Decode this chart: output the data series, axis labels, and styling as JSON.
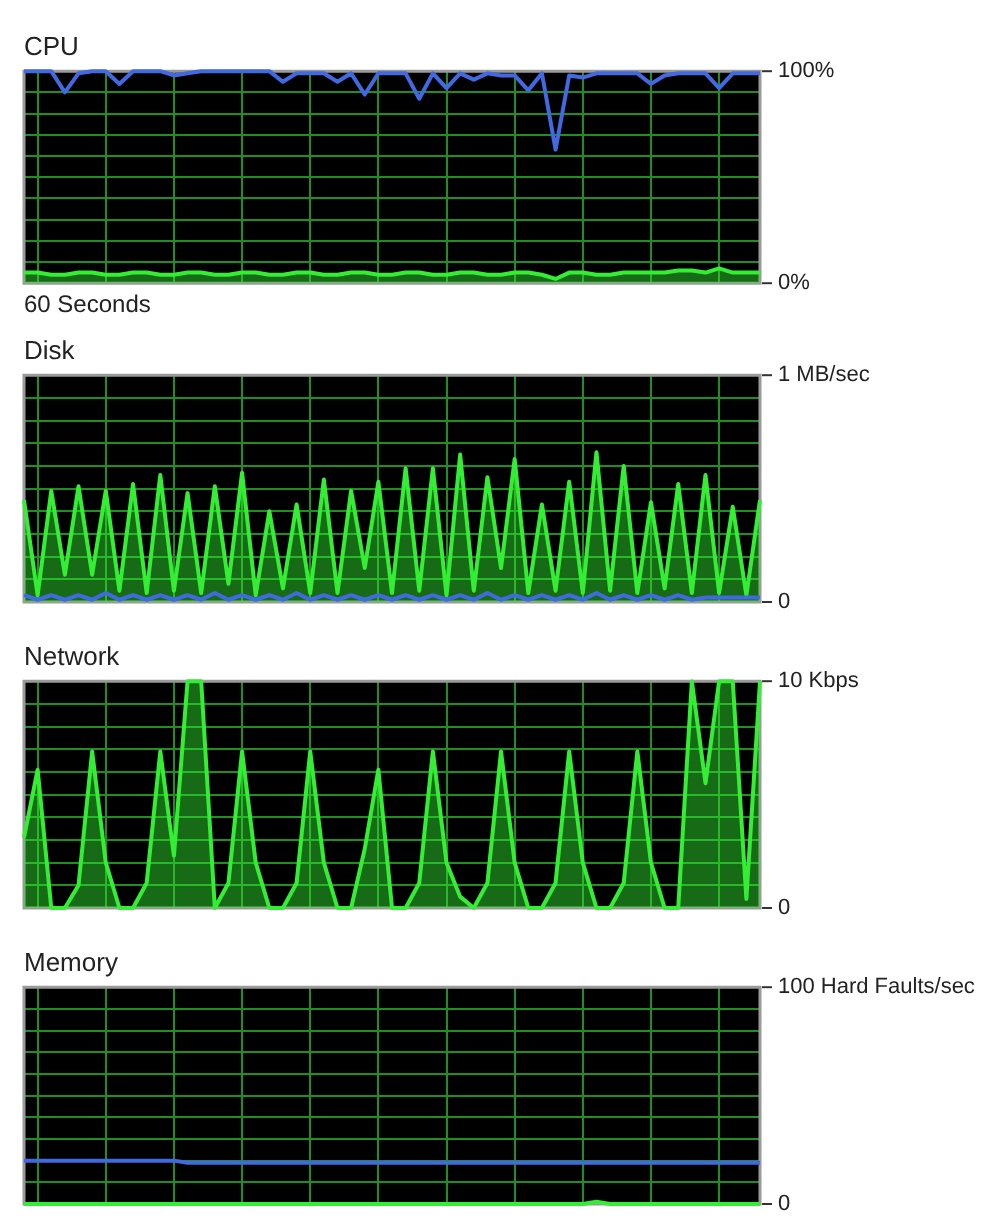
{
  "chart_data": [
    {
      "type": "line",
      "title": "CPU",
      "xlabel": "60 Seconds",
      "categories": [
        null,
        null,
        null,
        null,
        null,
        null,
        null,
        null,
        null,
        null,
        null,
        null,
        null,
        null,
        null,
        null,
        null,
        null,
        null,
        null,
        null,
        null,
        null,
        null,
        null,
        null,
        null,
        null,
        null,
        null,
        null,
        null,
        null,
        null,
        null,
        null,
        null,
        null,
        null,
        null,
        null,
        null,
        null,
        null,
        null,
        null,
        null,
        null,
        null,
        null,
        null,
        null,
        null,
        null,
        null
      ],
      "ylim": [
        0,
        100
      ],
      "yticks": [
        {
          "value": 0,
          "label": "0%"
        },
        {
          "value": 10,
          "label": null
        },
        {
          "value": 20,
          "label": null
        },
        {
          "value": 30,
          "label": null
        },
        {
          "value": 40,
          "label": null
        },
        {
          "value": 50,
          "label": null
        },
        {
          "value": 60,
          "label": null
        },
        {
          "value": 70,
          "label": null
        },
        {
          "value": 80,
          "label": null
        },
        {
          "value": 90,
          "label": null
        },
        {
          "value": 100,
          "label": "100%"
        }
      ],
      "grid": true,
      "legend": false,
      "marker": "none",
      "tick_labels": "y",
      "series": [
        {
          "type": "area",
          "color": "#33ee33",
          "values": [
            5,
            5,
            4,
            4,
            5,
            5,
            4,
            4,
            5,
            5,
            4,
            4,
            5,
            5,
            4,
            4,
            5,
            5,
            4,
            4,
            5,
            5,
            4,
            4,
            5,
            5,
            4,
            4,
            5,
            5,
            4,
            4,
            5,
            5,
            4,
            4,
            5,
            5,
            4,
            2,
            5,
            5,
            4,
            4,
            5,
            5,
            5,
            5,
            6,
            6,
            5,
            7,
            5,
            5,
            5
          ]
        },
        {
          "color": "#4169e1",
          "values": [
            100,
            100,
            100,
            90,
            99,
            100,
            100,
            94,
            100,
            100,
            100,
            98,
            99,
            100,
            100,
            100,
            100,
            100,
            100,
            95,
            99,
            99,
            99,
            95,
            99,
            89,
            99,
            99,
            99,
            87,
            99,
            92,
            99,
            96,
            99,
            98,
            98,
            91,
            99,
            63,
            98,
            97,
            99,
            99,
            99,
            99,
            94,
            98,
            99,
            99,
            99,
            92,
            99,
            99,
            99
          ]
        }
      ]
    },
    {
      "type": "line",
      "title": "Disk",
      "categories": [
        null,
        null,
        null,
        null,
        null,
        null,
        null,
        null,
        null,
        null,
        null,
        null,
        null,
        null,
        null,
        null,
        null,
        null,
        null,
        null,
        null,
        null,
        null,
        null,
        null,
        null,
        null,
        null,
        null,
        null,
        null,
        null,
        null,
        null,
        null,
        null,
        null,
        null,
        null,
        null,
        null,
        null,
        null,
        null,
        null,
        null,
        null,
        null,
        null,
        null,
        null,
        null,
        null,
        null,
        null
      ],
      "ylim": [
        0,
        1
      ],
      "yticks": [
        {
          "value": 0,
          "label": "0"
        },
        {
          "value": 0.1,
          "label": null
        },
        {
          "value": 0.2,
          "label": null
        },
        {
          "value": 0.3,
          "label": null
        },
        {
          "value": 0.4,
          "label": null
        },
        {
          "value": 0.5,
          "label": null
        },
        {
          "value": 0.6,
          "label": null
        },
        {
          "value": 0.7,
          "label": null
        },
        {
          "value": 0.8,
          "label": null
        },
        {
          "value": 0.9,
          "label": null
        },
        {
          "value": 1,
          "label": "1 MB/sec"
        }
      ],
      "grid": true,
      "legend": false,
      "marker": "none",
      "tick_labels": "y",
      "series": [
        {
          "type": "area",
          "color": "#33ee33",
          "values": [
            0.45,
            0.03,
            0.49,
            0.12,
            0.51,
            0.12,
            0.49,
            0.05,
            0.52,
            0.04,
            0.56,
            0.05,
            0.48,
            0.04,
            0.51,
            0.08,
            0.57,
            0.03,
            0.4,
            0.06,
            0.43,
            0.04,
            0.54,
            0.04,
            0.49,
            0.15,
            0.53,
            0.04,
            0.59,
            0.05,
            0.59,
            0.03,
            0.65,
            0.05,
            0.55,
            0.15,
            0.63,
            0.04,
            0.43,
            0.05,
            0.53,
            0.04,
            0.66,
            0.05,
            0.6,
            0.04,
            0.44,
            0.06,
            0.52,
            0.04,
            0.56,
            0.04,
            0.42,
            0.03,
            0.45
          ]
        },
        {
          "color": "#4169e1",
          "values": [
            0.03,
            0.01,
            0.03,
            0.01,
            0.03,
            0.01,
            0.04,
            0.01,
            0.03,
            0.01,
            0.03,
            0.01,
            0.03,
            0.01,
            0.04,
            0.01,
            0.03,
            0.01,
            0.03,
            0.01,
            0.04,
            0.01,
            0.03,
            0.01,
            0.03,
            0.01,
            0.03,
            0.01,
            0.03,
            0.01,
            0.03,
            0.01,
            0.03,
            0.01,
            0.04,
            0.01,
            0.03,
            0.01,
            0.03,
            0.01,
            0.03,
            0.01,
            0.04,
            0.01,
            0.03,
            0.01,
            0.03,
            0.01,
            0.03,
            0.01,
            0.02,
            0.02,
            0.02,
            0.02,
            0.02
          ]
        }
      ]
    },
    {
      "type": "area",
      "title": "Network",
      "categories": [
        null,
        null,
        null,
        null,
        null,
        null,
        null,
        null,
        null,
        null,
        null,
        null,
        null,
        null,
        null,
        null,
        null,
        null,
        null,
        null,
        null,
        null,
        null,
        null,
        null,
        null,
        null,
        null,
        null,
        null,
        null,
        null,
        null,
        null,
        null,
        null,
        null,
        null,
        null,
        null,
        null,
        null,
        null,
        null,
        null,
        null,
        null,
        null,
        null,
        null,
        null,
        null,
        null,
        null,
        null
      ],
      "ylim": [
        0,
        10
      ],
      "yticks": [
        {
          "value": 0,
          "label": "0"
        },
        {
          "value": 1,
          "label": null
        },
        {
          "value": 2,
          "label": null
        },
        {
          "value": 3,
          "label": null
        },
        {
          "value": 4,
          "label": null
        },
        {
          "value": 5,
          "label": null
        },
        {
          "value": 6,
          "label": null
        },
        {
          "value": 7,
          "label": null
        },
        {
          "value": 8,
          "label": null
        },
        {
          "value": 9,
          "label": null
        },
        {
          "value": 10,
          "label": "10 Kbps"
        }
      ],
      "grid": true,
      "legend": false,
      "marker": "none",
      "tick_labels": "y",
      "series": [
        {
          "color": "#33ee33",
          "values": [
            3.1,
            6.1,
            0,
            0,
            1.0,
            6.9,
            2.0,
            0,
            0,
            1.1,
            6.9,
            2.3,
            10,
            10,
            0,
            1.1,
            6.9,
            2.0,
            0,
            0,
            1.1,
            6.9,
            2.0,
            0,
            0,
            2.6,
            6.1,
            0,
            0,
            1.1,
            6.9,
            2.0,
            0.5,
            0,
            1.1,
            6.9,
            2.0,
            0,
            0,
            1.1,
            6.9,
            2.0,
            0,
            0,
            1.1,
            6.9,
            2.0,
            0,
            0,
            10,
            5.5,
            10,
            10,
            0.4,
            10
          ]
        }
      ]
    },
    {
      "type": "line",
      "title": "Memory",
      "categories": [
        null,
        null,
        null,
        null,
        null,
        null,
        null,
        null,
        null,
        null,
        null,
        null,
        null,
        null,
        null,
        null,
        null,
        null,
        null,
        null,
        null,
        null,
        null,
        null,
        null,
        null,
        null,
        null,
        null,
        null,
        null,
        null,
        null,
        null,
        null,
        null,
        null,
        null,
        null,
        null,
        null,
        null,
        null,
        null,
        null,
        null,
        null,
        null,
        null,
        null,
        null,
        null,
        null,
        null,
        null
      ],
      "ylim": [
        0,
        100
      ],
      "yticks": [
        {
          "value": 0,
          "label": "0"
        },
        {
          "value": 10,
          "label": null
        },
        {
          "value": 20,
          "label": null
        },
        {
          "value": 30,
          "label": null
        },
        {
          "value": 40,
          "label": null
        },
        {
          "value": 50,
          "label": null
        },
        {
          "value": 60,
          "label": null
        },
        {
          "value": 70,
          "label": null
        },
        {
          "value": 80,
          "label": null
        },
        {
          "value": 90,
          "label": null
        },
        {
          "value": 100,
          "label": "100 Hard Faults/sec"
        }
      ],
      "grid": true,
      "legend": false,
      "marker": "none",
      "tick_labels": "y",
      "series": [
        {
          "type": "area",
          "color": "#33ee33",
          "values": [
            0,
            0,
            0,
            0,
            0,
            0,
            0,
            0,
            0,
            0,
            0,
            0,
            0,
            0,
            0,
            0,
            0,
            0,
            0,
            0,
            0,
            0,
            0,
            0,
            0,
            0,
            0,
            0,
            0,
            0,
            0,
            0,
            0,
            0,
            0,
            0,
            0,
            0,
            0,
            0,
            0,
            0,
            1,
            0,
            0,
            0,
            0,
            0,
            0,
            0,
            0,
            0,
            0,
            0,
            0
          ]
        },
        {
          "color": "#4169e1",
          "values": [
            20,
            20,
            20,
            20,
            20,
            20,
            20,
            20,
            20,
            20,
            20,
            20,
            19,
            19,
            19,
            19,
            19,
            19,
            19,
            19,
            19,
            19,
            19,
            19,
            19,
            19,
            19,
            19,
            19,
            19,
            19,
            19,
            19,
            19,
            19,
            19,
            19,
            19,
            19,
            19,
            19,
            19,
            19,
            19,
            19,
            19,
            19,
            19,
            19,
            19,
            19,
            19,
            19,
            19,
            19
          ]
        }
      ]
    }
  ]
}
